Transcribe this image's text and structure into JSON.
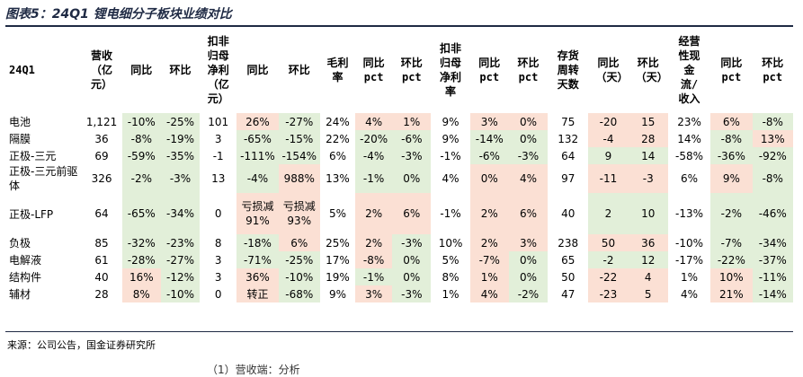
{
  "title": "图表5：24Q1 锂电细分子板块业绩对比",
  "headers": [
    "24Q1",
    "营收（亿元）",
    "同比",
    "环比",
    "扣非归母净利（亿元）",
    "同比",
    "环比",
    "毛利率",
    "同比pct",
    "环比pct",
    "扣非归母净利率",
    "同比pct",
    "环比pct",
    "存货周转天数",
    "同比（天）",
    "环比（天）",
    "经营性现金流/收入",
    "同比pct",
    "环比pct"
  ],
  "rows": [
    {
      "name": "电池",
      "cells": [
        "1,121",
        "-10%",
        "-25%",
        "101",
        "26%",
        "-27%",
        "24%",
        "4%",
        "1%",
        "9%",
        "3%",
        "0%",
        "75",
        "-20",
        "15",
        "23%",
        "6%",
        "-8%"
      ]
    },
    {
      "name": "隔膜",
      "cells": [
        "36",
        "-8%",
        "-19%",
        "3",
        "-65%",
        "-15%",
        "22%",
        "-20%",
        "-6%",
        "9%",
        "-14%",
        "0%",
        "132",
        "-4",
        "28",
        "14%",
        "-8%",
        "13%"
      ]
    },
    {
      "name": "正极-三元",
      "cells": [
        "69",
        "-59%",
        "-35%",
        "-1",
        "-111%",
        "-154%",
        "6%",
        "-4%",
        "-3%",
        "-1%",
        "-6%",
        "-3%",
        "64",
        "9",
        "14",
        "-58%",
        "-36%",
        "-92%"
      ]
    },
    {
      "name": "正极-三元前驱体",
      "cells": [
        "326",
        "-2%",
        "-3%",
        "13",
        "-4%",
        "988%",
        "13%",
        "-1%",
        "0%",
        "4%",
        "0%",
        "4%",
        "97",
        "-11",
        "-3",
        "6%",
        "9%",
        "-8%"
      ]
    },
    {
      "name": "正极-LFP",
      "cells": [
        "64",
        "-65%",
        "-34%",
        "0",
        "亏损减91%",
        "亏损减93%",
        "5%",
        "2%",
        "6%",
        "-1%",
        "2%",
        "6%",
        "40",
        "2",
        "10",
        "-13%",
        "-2%",
        "-46%"
      ]
    },
    {
      "name": "负极",
      "cells": [
        "85",
        "-32%",
        "-23%",
        "8",
        "-18%",
        "6%",
        "25%",
        "2%",
        "-3%",
        "10%",
        "2%",
        "3%",
        "238",
        "50",
        "36",
        "-10%",
        "-7%",
        "-34%"
      ]
    },
    {
      "name": "电解液",
      "cells": [
        "61",
        "-28%",
        "-27%",
        "3",
        "-71%",
        "-25%",
        "17%",
        "-8%",
        "0%",
        "5%",
        "-7%",
        "0%",
        "65",
        "-2",
        "12",
        "-17%",
        "-22%",
        "-37%"
      ]
    },
    {
      "name": "结构件",
      "cells": [
        "40",
        "16%",
        "-12%",
        "3",
        "36%",
        "-10%",
        "19%",
        "-1%",
        "0%",
        "8%",
        "1%",
        "0%",
        "50",
        "-22",
        "4",
        "1%",
        "10%",
        "-11%"
      ]
    },
    {
      "name": "辅材",
      "cells": [
        "28",
        "8%",
        "-10%",
        "0",
        "转正",
        "-68%",
        "9%",
        "3%",
        "-3%",
        "1%",
        "4%",
        "-2%",
        "47",
        "-23",
        "5",
        "4%",
        "21%",
        "-14%"
      ]
    }
  ],
  "source": "来源：公司公告，国金证券研究所",
  "footer": "（1）营收端：分析"
}
